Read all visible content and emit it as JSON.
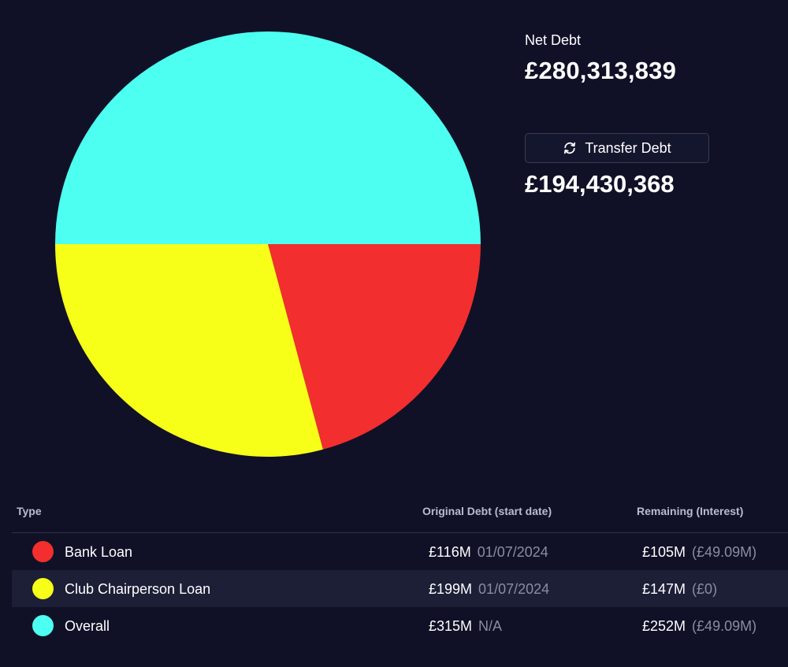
{
  "colors": {
    "background": "#101127",
    "bank_loan": "#f22e2e",
    "chairperson_loan": "#f7ff18",
    "overall": "#4dfff0"
  },
  "chart_data": {
    "type": "pie",
    "slices": [
      {
        "name": "Overall",
        "value": 252,
        "color": "#4dfff0"
      },
      {
        "name": "Bank Loan",
        "value": 105,
        "color": "#f22e2e"
      },
      {
        "name": "Club Chairperson Loan",
        "value": 147,
        "color": "#f7ff18"
      }
    ]
  },
  "summary": {
    "net_debt_label": "Net Debt",
    "net_debt_value": "£280,313,839",
    "transfer_debt_label": "Transfer Debt",
    "transfer_debt_icon": "refresh-icon",
    "transfer_debt_value": "£194,430,368"
  },
  "table": {
    "headers": {
      "type": "Type",
      "original": "Original Debt (start date)",
      "remaining": "Remaining (Interest)"
    },
    "rows": [
      {
        "type": "Bank Loan",
        "color": "#f22e2e",
        "original": "£116M",
        "start_date": "01/07/2024",
        "remaining": "£105M",
        "interest": "(£49.09M)"
      },
      {
        "type": "Club Chairperson Loan",
        "color": "#f7ff18",
        "original": "£199M",
        "start_date": "01/07/2024",
        "remaining": "£147M",
        "interest": "(£0)"
      },
      {
        "type": "Overall",
        "color": "#4dfff0",
        "original": "£315M",
        "start_date": "N/A",
        "remaining": "£252M",
        "interest": "(£49.09M)"
      }
    ]
  }
}
